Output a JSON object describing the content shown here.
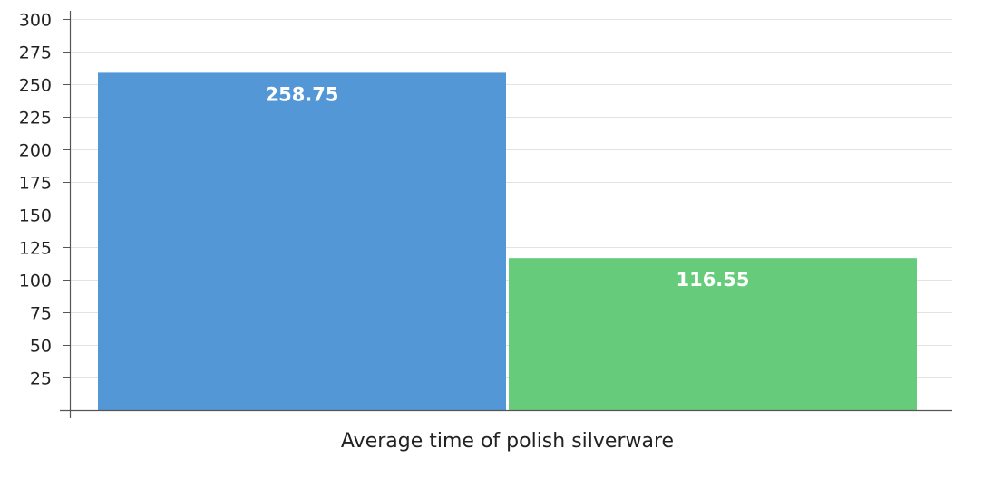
{
  "chart_data": {
    "type": "bar",
    "title": "",
    "xlabel": "",
    "ylabel": "",
    "categories": [
      "Average time of polish silverware"
    ],
    "series": [
      {
        "values": [
          258.75
        ],
        "color": "#5497d6"
      },
      {
        "values": [
          116.55
        ],
        "color": "#66cb7a"
      }
    ],
    "data_labels": [
      "258.75",
      "116.55"
    ],
    "ylim": [
      0,
      300
    ],
    "yticks": [
      25,
      50,
      75,
      100,
      125,
      150,
      175,
      200,
      225,
      250,
      275,
      300
    ],
    "ytick_labels": [
      "25",
      "50",
      "75",
      "100",
      "125",
      "150",
      "175",
      "200",
      "225",
      "250",
      "275",
      "300"
    ],
    "grid": true,
    "legend": "none"
  }
}
